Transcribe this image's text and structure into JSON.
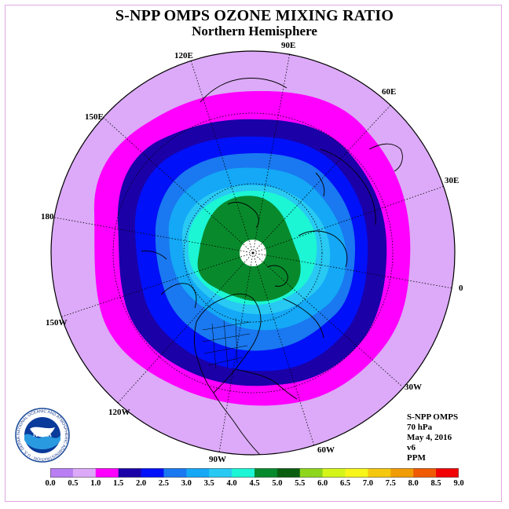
{
  "header": {
    "title": "S-NPP OMPS OZONE MIXING RATIO",
    "subtitle": "Northern Hemisphere"
  },
  "longitude_labels": [
    "90E",
    "60E",
    "30E",
    "0",
    "30W",
    "60W",
    "90W",
    "120W",
    "150W",
    "180",
    "150E",
    "120E"
  ],
  "info": {
    "lines": [
      "S-NPP OMPS",
      "70 hPa",
      "May 4, 2016",
      "v6",
      "PPM"
    ]
  },
  "colorbar": {
    "labels": [
      "0.0",
      "0.5",
      "1.0",
      "1.5",
      "2.0",
      "2.5",
      "3.0",
      "3.5",
      "4.0",
      "4.5",
      "5.0",
      "5.5",
      "6.0",
      "6.5",
      "7.0",
      "7.5",
      "8.0",
      "8.5",
      "9.0"
    ],
    "colors": [
      "#b87ef2",
      "#dcaaf8",
      "#ff00ff",
      "#1b00a8",
      "#0010f8",
      "#1a78f0",
      "#14a8f6",
      "#28c9f3",
      "#1cf6d4",
      "#088a2c",
      "#0a5e10",
      "#8ed61c",
      "#d4f51a",
      "#f7f51a",
      "#f5c80e",
      "#f09c06",
      "#f05a02",
      "#f20202",
      "#8a4a1c"
    ]
  },
  "logo": {
    "text": "NOAA",
    "ring_text": "NATIONAL OCEANIC AND ATMOSPHERIC ADMINISTRATION · U.S. DEPARTMENT OF COMMERCE"
  },
  "map": {
    "projection": "north-polar-stereographic",
    "zone_colors": {
      "outer": "#dcaaf8",
      "ring_1": "#ff00ff",
      "ring_2": "#1b00a8",
      "ring_3": "#0010f8",
      "ring_4": "#1a78f0",
      "ring_5": "#14a8f6",
      "ring_6": "#28c9f3",
      "ring_7": "#1cf6d4",
      "core": "#088a2c",
      "pole_hole": "#ffffff"
    }
  }
}
